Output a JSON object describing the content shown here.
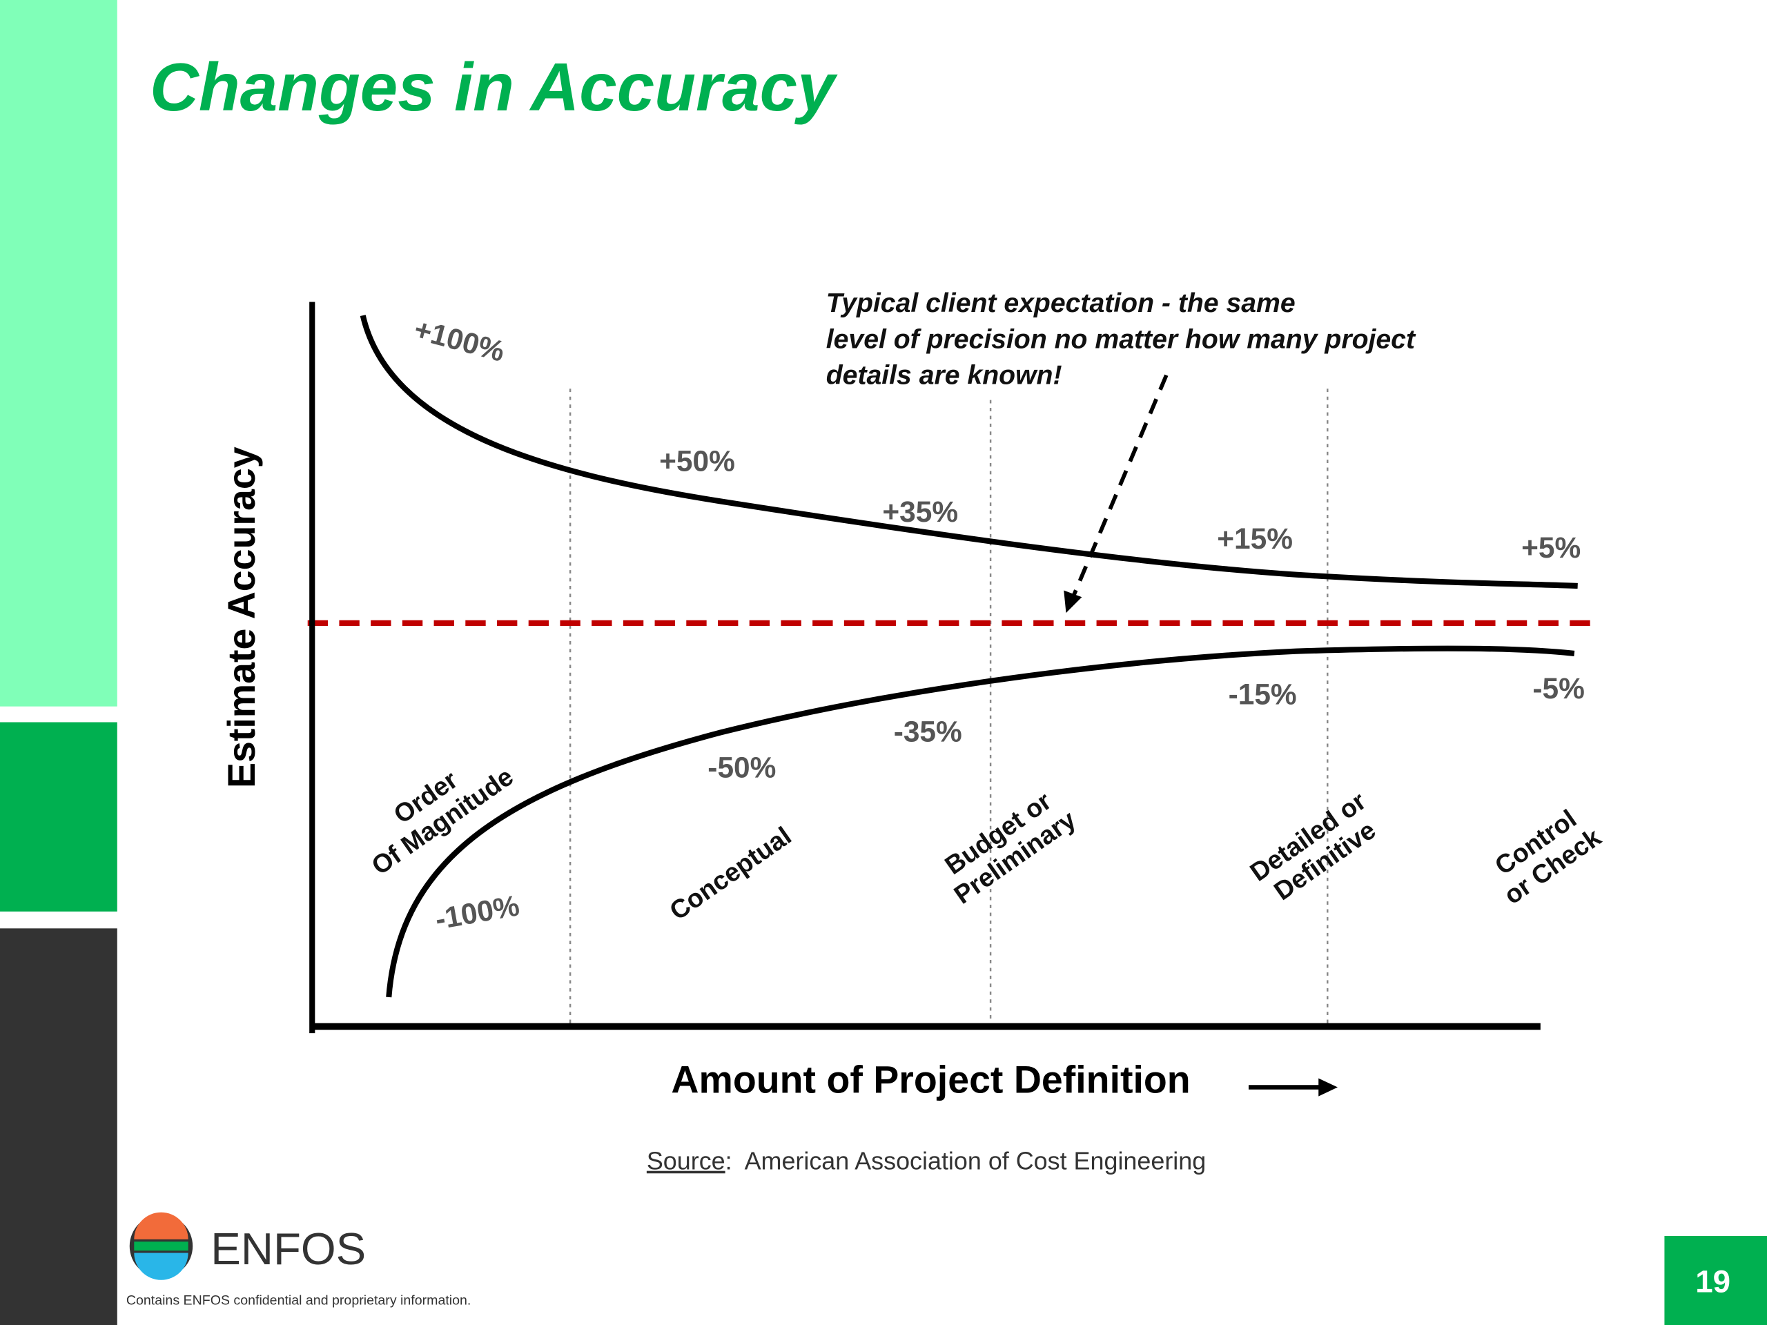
{
  "title": "Changes in Accuracy",
  "diagram": {
    "y_axis_label": "Estimate Accuracy",
    "x_axis_label": "Amount of Project Definition",
    "annotation": [
      "Typical client expectation - the same",
      "level of precision no matter how many project",
      "details are known!"
    ],
    "upper_labels": [
      "+100%",
      "+50%",
      "+35%",
      "+15%",
      "+5%"
    ],
    "lower_labels": [
      "-100%",
      "-50%",
      "-35%",
      "-15%",
      "-5%"
    ],
    "phases": [
      [
        "Order",
        "Of Magnitude"
      ],
      [
        "Conceptual"
      ],
      [
        "Budget or",
        "Preliminary"
      ],
      [
        "Detailed or",
        "Definitive"
      ],
      [
        "Control",
        "or Check"
      ]
    ]
  },
  "source": {
    "label": "Source",
    "text": ":  American Association of Cost Engineering"
  },
  "logo": "ENFOS",
  "footer": "Contains ENFOS confidential and proprietary information.",
  "page_number": "19"
}
